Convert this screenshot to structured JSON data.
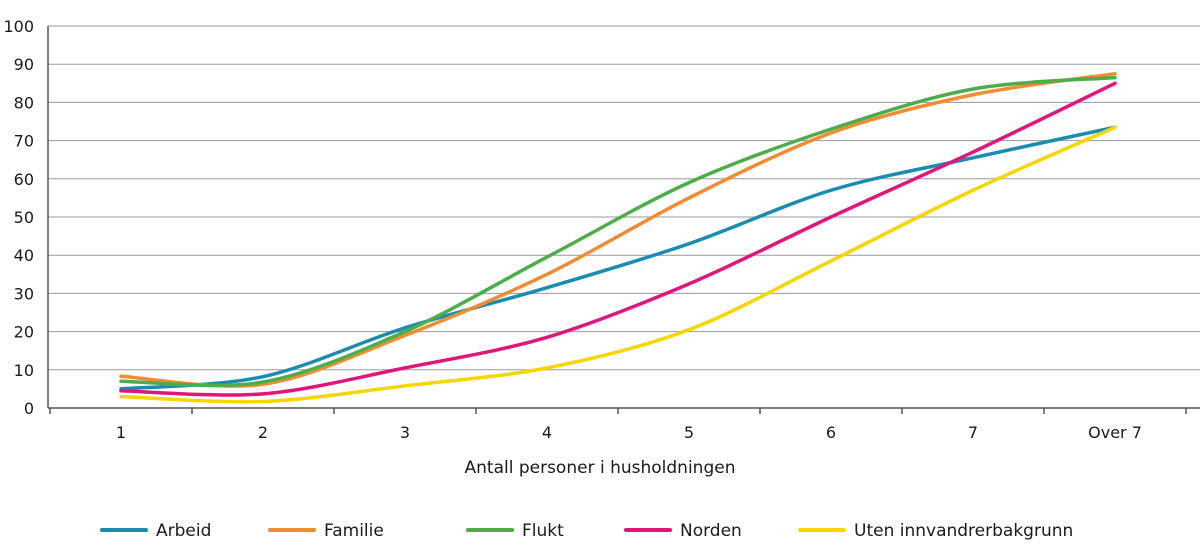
{
  "chart_data": {
    "type": "line",
    "title": "",
    "xlabel": "Antall personer i husholdningen",
    "ylabel": "",
    "categories": [
      "1",
      "2",
      "3",
      "4",
      "5",
      "6",
      "7",
      "Over 7"
    ],
    "ylim": [
      0,
      100
    ],
    "yticks": [
      "0",
      "10",
      "20",
      "30",
      "40",
      "50",
      "60",
      "70",
      "80",
      "90",
      "100"
    ],
    "grid": true,
    "legend_position": "bottom",
    "series": [
      {
        "name": "Arbeid",
        "color": "#1a8cb0",
        "values": [
          5,
          8.2,
          21,
          31.5,
          43,
          57,
          65.5,
          73.5
        ]
      },
      {
        "name": "Familie",
        "color": "#f28c33",
        "values": [
          8.3,
          6.2,
          19,
          35,
          55,
          72,
          82,
          87.5
        ]
      },
      {
        "name": "Flukt",
        "color": "#4cad4a",
        "values": [
          7,
          6.8,
          20,
          39.5,
          59,
          73,
          83.5,
          86.5
        ]
      },
      {
        "name": "Norden",
        "color": "#e0167a",
        "values": [
          4.5,
          3.7,
          10.5,
          18.5,
          32.5,
          50,
          67,
          85
        ]
      },
      {
        "name": "Uten innvandrerbakgrunn",
        "color": "#f7d600",
        "values": [
          3,
          1.7,
          5.8,
          10.5,
          20.5,
          38.5,
          57,
          73.5
        ]
      }
    ]
  }
}
